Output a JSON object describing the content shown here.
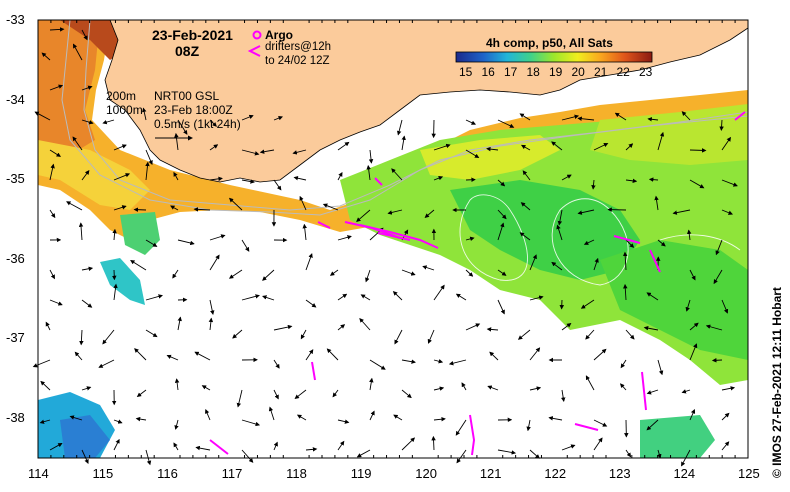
{
  "map": {
    "date_title": "23-Feb-2021",
    "time_title": "08Z",
    "argo_label": "Argo",
    "drifter_label_1": "drifters@12h",
    "drifter_label_2": "to 24/02 12Z",
    "isobath_1": "200m",
    "isobath_2": "1000m",
    "gsl_1": "NRT00 GSL",
    "gsl_2": "23-Feb 18:00Z",
    "gsl_3": "0.5m/s (1kt 24h)",
    "colorbar_title": "4h comp, p50, All Sats",
    "colorbar_ticks": [
      "15",
      "16",
      "17",
      "18",
      "19",
      "20",
      "21",
      "22",
      "23"
    ],
    "x_ticks": [
      "114",
      "115",
      "116",
      "117",
      "118",
      "119",
      "120",
      "121",
      "122",
      "123",
      "124",
      "125"
    ],
    "y_ticks": [
      "-33",
      "-34",
      "-35",
      "-36",
      "-37",
      "-38"
    ],
    "credit": "© IMOS 27-Feb-2021 12:11 Hobart",
    "colors": {
      "land": "#fbcb9b",
      "argo": "#ff00ff",
      "drifter": "#ff00ff"
    }
  }
}
